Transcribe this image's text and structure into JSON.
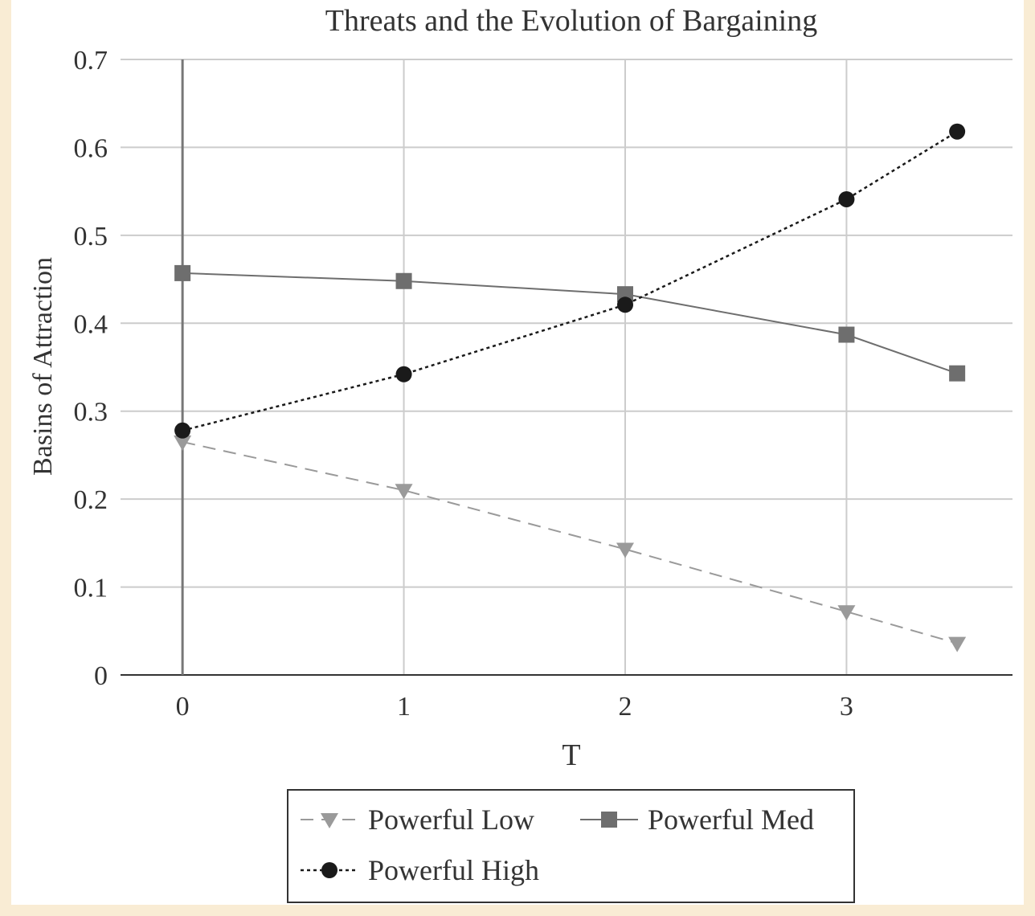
{
  "colors": {
    "background": "#f9ecd4",
    "plot": "#ffffff",
    "grid": "#cccccc",
    "axis": "#333333",
    "low": "#9a9a9a",
    "med": "#6e6e6e",
    "high": "#1a1a1a"
  },
  "chart_data": {
    "type": "line",
    "title": "Threats and the Evolution of Bargaining",
    "xlabel": "T",
    "ylabel": "Basins of Attraction",
    "x": [
      0,
      1,
      2,
      3,
      3.5
    ],
    "xticks": [
      "0",
      "1",
      "2",
      "3"
    ],
    "yticks": [
      "0",
      "0.1",
      "0.2",
      "0.3",
      "0.4",
      "0.5",
      "0.6",
      "0.7"
    ],
    "xlim": [
      -0.28,
      3.75
    ],
    "ylim": [
      0,
      0.7
    ],
    "grid": true,
    "legend_position": "bottom",
    "series": [
      {
        "name": "Powerful Low",
        "marker": "triangle-down",
        "line": "dashed",
        "values": [
          0.265,
          0.21,
          0.143,
          0.072,
          0.036
        ]
      },
      {
        "name": "Powerful Med",
        "marker": "square",
        "line": "solid",
        "values": [
          0.457,
          0.448,
          0.433,
          0.387,
          0.343
        ]
      },
      {
        "name": "Powerful High",
        "marker": "circle",
        "line": "dotted",
        "values": [
          0.278,
          0.342,
          0.421,
          0.541,
          0.618
        ]
      }
    ]
  }
}
